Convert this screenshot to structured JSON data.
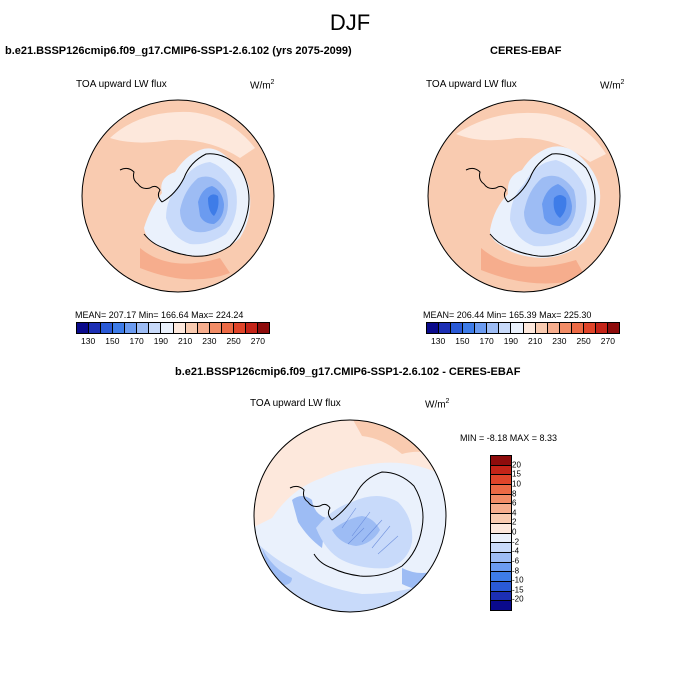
{
  "season": "DJF",
  "colors": {
    "abs_scale": [
      "#0a0a8c",
      "#1c2fb4",
      "#2a5ad6",
      "#3e7ce8",
      "#6b9bf0",
      "#9dbcf4",
      "#c8dafa",
      "#eaf1fc",
      "#fde8dc",
      "#f9cbb0",
      "#f6ad8d",
      "#f28c66",
      "#ec6a45",
      "#e0452a",
      "#c42418",
      "#8e0c0c"
    ],
    "diff_scale": [
      "#8e0c0c",
      "#c42418",
      "#e0452a",
      "#ec6a45",
      "#f28c66",
      "#f6ad8d",
      "#f9cbb0",
      "#fde8dc",
      "#eaf1fc",
      "#c8dafa",
      "#9dbcf4",
      "#6b9bf0",
      "#3e7ce8",
      "#2a5ad6",
      "#1c2fb4",
      "#0a0a8c"
    ]
  },
  "panels": {
    "model": {
      "title": "b.e21.BSSP126cmip6.f09_g17.CMIP6-SSP1-2.6.102 (yrs 2075-2099)",
      "variable": "TOA upward LW flux",
      "units_base": "W/m",
      "units_exp": "2",
      "stats": "MEAN= 207.17   Min= 166.64   Max= 224.24"
    },
    "obs": {
      "title": "CERES-EBAF",
      "variable": "TOA upward LW flux",
      "units_base": "W/m",
      "units_exp": "2",
      "stats": "MEAN= 206.44   Min= 165.39   Max= 225.30"
    },
    "diff": {
      "title": "b.e21.BSSP126cmip6.f09_g17.CMIP6-SSP1-2.6.102 - CERES-EBAF",
      "variable": "TOA upward LW flux",
      "units_base": "W/m",
      "units_exp": "2",
      "stats": "MIN =  -8.18 MAX =   8.33"
    }
  },
  "chart_data": [
    {
      "type": "heatmap",
      "title": "b.e21.BSSP126cmip6.f09_g17.CMIP6-SSP1-2.6.102 (yrs 2075-2099)",
      "subtitle": "TOA upward LW flux",
      "units": "W/m2",
      "mean": 207.17,
      "min": 166.64,
      "max": 224.24,
      "colorbar_ticks": [
        "130",
        "150",
        "170",
        "190",
        "210",
        "230",
        "250",
        "270"
      ],
      "projection": "south polar stereographic"
    },
    {
      "type": "heatmap",
      "title": "CERES-EBAF",
      "subtitle": "TOA upward LW flux",
      "units": "W/m2",
      "mean": 206.44,
      "min": 165.39,
      "max": 225.3,
      "colorbar_ticks": [
        "130",
        "150",
        "170",
        "190",
        "210",
        "230",
        "250",
        "270"
      ],
      "projection": "south polar stereographic"
    },
    {
      "type": "heatmap",
      "title": "b.e21.BSSP126cmip6.f09_g17.CMIP6-SSP1-2.6.102 - CERES-EBAF",
      "subtitle": "TOA upward LW flux",
      "units": "W/m2",
      "min": -8.18,
      "max": 8.33,
      "colorbar_ticks": [
        "20",
        "15",
        "10",
        "8",
        "6",
        "4",
        "2",
        "0",
        "-2",
        "-4",
        "-6",
        "-8",
        "-10",
        "-15",
        "-20"
      ],
      "projection": "south polar stereographic"
    }
  ]
}
